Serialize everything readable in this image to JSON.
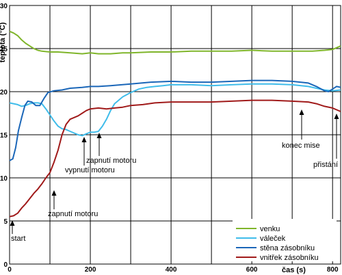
{
  "chart_data": {
    "type": "line",
    "xlabel": "čas (s)",
    "ylabel": "teplota (°C)",
    "xlim": [
      0,
      820
    ],
    "ylim": [
      0,
      30
    ],
    "xticks": [
      0,
      200,
      400,
      600,
      800
    ],
    "yticks": [
      0,
      5,
      10,
      15,
      20,
      25,
      30
    ],
    "grid": true,
    "legend_position": "bottom-right",
    "colors": {
      "venku": "#7fb52a",
      "valecek": "#3fbcea",
      "stena": "#1a66b8",
      "vnitrek": "#a01a1a"
    },
    "series": [
      {
        "name": "venku",
        "color": "#7fb52a",
        "points": [
          [
            0,
            27.0
          ],
          [
            10,
            26.8
          ],
          [
            20,
            26.5
          ],
          [
            30,
            26.0
          ],
          [
            40,
            25.6
          ],
          [
            50,
            25.3
          ],
          [
            60,
            25.0
          ],
          [
            70,
            24.8
          ],
          [
            80,
            24.7
          ],
          [
            100,
            24.6
          ],
          [
            120,
            24.6
          ],
          [
            150,
            24.5
          ],
          [
            180,
            24.4
          ],
          [
            200,
            24.5
          ],
          [
            220,
            24.4
          ],
          [
            250,
            24.4
          ],
          [
            280,
            24.5
          ],
          [
            300,
            24.5
          ],
          [
            350,
            24.6
          ],
          [
            400,
            24.6
          ],
          [
            450,
            24.7
          ],
          [
            500,
            24.7
          ],
          [
            550,
            24.7
          ],
          [
            600,
            24.8
          ],
          [
            650,
            24.7
          ],
          [
            700,
            24.7
          ],
          [
            750,
            24.7
          ],
          [
            780,
            24.8
          ],
          [
            800,
            24.9
          ],
          [
            820,
            25.3
          ]
        ]
      },
      {
        "name": "váleček",
        "color": "#3fbcea",
        "points": [
          [
            0,
            18.7
          ],
          [
            10,
            18.6
          ],
          [
            20,
            18.5
          ],
          [
            30,
            18.3
          ],
          [
            40,
            18.4
          ],
          [
            50,
            18.6
          ],
          [
            60,
            18.7
          ],
          [
            70,
            18.7
          ],
          [
            80,
            18.6
          ],
          [
            90,
            18.0
          ],
          [
            100,
            17.3
          ],
          [
            110,
            16.6
          ],
          [
            120,
            16.0
          ],
          [
            130,
            15.7
          ],
          [
            140,
            15.6
          ],
          [
            150,
            15.4
          ],
          [
            160,
            15.2
          ],
          [
            170,
            15.0
          ],
          [
            180,
            14.9
          ],
          [
            190,
            15.1
          ],
          [
            200,
            15.3
          ],
          [
            210,
            15.3
          ],
          [
            220,
            15.4
          ],
          [
            230,
            16.0
          ],
          [
            240,
            16.8
          ],
          [
            250,
            17.8
          ],
          [
            260,
            18.6
          ],
          [
            280,
            19.4
          ],
          [
            300,
            19.9
          ],
          [
            320,
            20.3
          ],
          [
            340,
            20.5
          ],
          [
            360,
            20.6
          ],
          [
            380,
            20.7
          ],
          [
            400,
            20.8
          ],
          [
            450,
            20.8
          ],
          [
            500,
            20.7
          ],
          [
            550,
            20.8
          ],
          [
            600,
            20.9
          ],
          [
            650,
            20.9
          ],
          [
            700,
            20.8
          ],
          [
            740,
            20.6
          ],
          [
            760,
            20.4
          ],
          [
            780,
            20.2
          ],
          [
            800,
            20.1
          ],
          [
            820,
            20.2
          ]
        ]
      },
      {
        "name": "stěna zásobníku",
        "color": "#1a66b8",
        "points": [
          [
            0,
            12.0
          ],
          [
            8,
            12.2
          ],
          [
            15,
            13.5
          ],
          [
            22,
            15.5
          ],
          [
            30,
            17.0
          ],
          [
            38,
            18.4
          ],
          [
            45,
            18.9
          ],
          [
            55,
            18.8
          ],
          [
            65,
            18.4
          ],
          [
            75,
            18.4
          ],
          [
            85,
            19.2
          ],
          [
            95,
            19.9
          ],
          [
            110,
            20.1
          ],
          [
            130,
            20.2
          ],
          [
            150,
            20.4
          ],
          [
            180,
            20.5
          ],
          [
            200,
            20.6
          ],
          [
            220,
            20.6
          ],
          [
            250,
            20.7
          ],
          [
            300,
            20.9
          ],
          [
            350,
            21.1
          ],
          [
            400,
            21.2
          ],
          [
            450,
            21.1
          ],
          [
            500,
            21.1
          ],
          [
            550,
            21.2
          ],
          [
            600,
            21.3
          ],
          [
            650,
            21.3
          ],
          [
            700,
            21.2
          ],
          [
            740,
            21.0
          ],
          [
            760,
            20.6
          ],
          [
            780,
            20.1
          ],
          [
            790,
            20.0
          ],
          [
            800,
            20.3
          ],
          [
            810,
            20.6
          ],
          [
            820,
            20.5
          ]
        ]
      },
      {
        "name": "vnitřek zásobníku",
        "color": "#a01a1a",
        "points": [
          [
            0,
            5.5
          ],
          [
            10,
            5.6
          ],
          [
            20,
            5.9
          ],
          [
            30,
            6.5
          ],
          [
            40,
            7.0
          ],
          [
            50,
            7.6
          ],
          [
            60,
            8.2
          ],
          [
            70,
            8.7
          ],
          [
            80,
            9.3
          ],
          [
            90,
            10.0
          ],
          [
            100,
            10.6
          ],
          [
            110,
            11.8
          ],
          [
            120,
            13.2
          ],
          [
            130,
            15.0
          ],
          [
            140,
            16.2
          ],
          [
            150,
            16.8
          ],
          [
            160,
            17.0
          ],
          [
            170,
            17.2
          ],
          [
            180,
            17.5
          ],
          [
            190,
            17.8
          ],
          [
            200,
            18.0
          ],
          [
            220,
            18.1
          ],
          [
            240,
            18.0
          ],
          [
            260,
            18.1
          ],
          [
            280,
            18.2
          ],
          [
            300,
            18.4
          ],
          [
            330,
            18.5
          ],
          [
            360,
            18.7
          ],
          [
            400,
            18.8
          ],
          [
            450,
            18.8
          ],
          [
            500,
            18.8
          ],
          [
            550,
            18.9
          ],
          [
            600,
            19.0
          ],
          [
            650,
            19.0
          ],
          [
            700,
            18.9
          ],
          [
            740,
            18.8
          ],
          [
            760,
            18.6
          ],
          [
            780,
            18.3
          ],
          [
            800,
            18.1
          ],
          [
            820,
            17.7
          ]
        ]
      }
    ],
    "annotations": [
      {
        "text": "start",
        "x": 5,
        "y": 5.5
      },
      {
        "text": "zapnutí motoru",
        "x": 110,
        "y": 9.8
      },
      {
        "text": "vypnutí motoru",
        "x": 183,
        "y": 14.6
      },
      {
        "text": "zapnutí motoru",
        "x": 227,
        "y": 15.4
      },
      {
        "text": "konec mise",
        "x": 740,
        "y": 18.6
      },
      {
        "text": "přistání",
        "x": 816,
        "y": 17.6
      }
    ]
  }
}
